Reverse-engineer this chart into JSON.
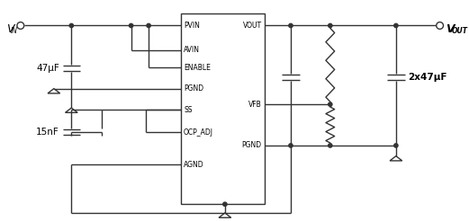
{
  "background_color": "#ffffff",
  "line_color": "#333333",
  "cap1_label": "47μF",
  "cap2_label": "15nF",
  "cap3_label": "2x47μF",
  "left_pins": [
    "PVIN",
    "AVIN",
    "ENABLE",
    "PGND",
    "SS",
    "OCP_ADJ",
    "AGND"
  ],
  "right_pins": [
    "VOUT",
    "VFB",
    "PGND"
  ]
}
